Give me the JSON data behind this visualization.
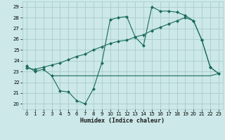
{
  "xlabel": "Humidex (Indice chaleur)",
  "bg_color": "#cce8e8",
  "grid_color": "#aacccc",
  "line_color": "#1a6b5a",
  "xlim": [
    -0.5,
    23.5
  ],
  "ylim": [
    19.5,
    29.5
  ],
  "xticks": [
    0,
    1,
    2,
    3,
    4,
    5,
    6,
    7,
    8,
    9,
    10,
    11,
    12,
    13,
    14,
    15,
    16,
    17,
    18,
    19,
    20,
    21,
    22,
    23
  ],
  "yticks": [
    20,
    21,
    22,
    23,
    24,
    25,
    26,
    27,
    28,
    29
  ],
  "line1_x": [
    0,
    1,
    2,
    3,
    4,
    5,
    6,
    7,
    8,
    9,
    10,
    11,
    12,
    13,
    14,
    15,
    16,
    17,
    18,
    19,
    20,
    21,
    22,
    23
  ],
  "line1_y": [
    23.5,
    23.0,
    23.2,
    22.6,
    21.2,
    21.1,
    20.3,
    20.0,
    21.4,
    23.8,
    27.8,
    28.0,
    28.1,
    26.2,
    25.4,
    29.0,
    28.6,
    28.6,
    28.5,
    28.2,
    27.7,
    25.9,
    23.4,
    22.8
  ],
  "line2_x": [
    0,
    1,
    2,
    3,
    4,
    5,
    6,
    7,
    8,
    9,
    10,
    11,
    12,
    13,
    14,
    15,
    16,
    17,
    18,
    19,
    20,
    21,
    22,
    23
  ],
  "line2_y": [
    23.3,
    23.2,
    23.4,
    23.6,
    23.8,
    24.1,
    24.4,
    24.6,
    25.0,
    25.3,
    25.6,
    25.8,
    25.9,
    26.2,
    26.4,
    26.8,
    27.1,
    27.4,
    27.7,
    28.0,
    27.7,
    25.9,
    23.4,
    22.8
  ],
  "line3_x": [
    3,
    9,
    15,
    19,
    22,
    23
  ],
  "line3_y": [
    22.6,
    22.6,
    22.6,
    22.6,
    22.6,
    22.8
  ],
  "marker_size": 2.5
}
